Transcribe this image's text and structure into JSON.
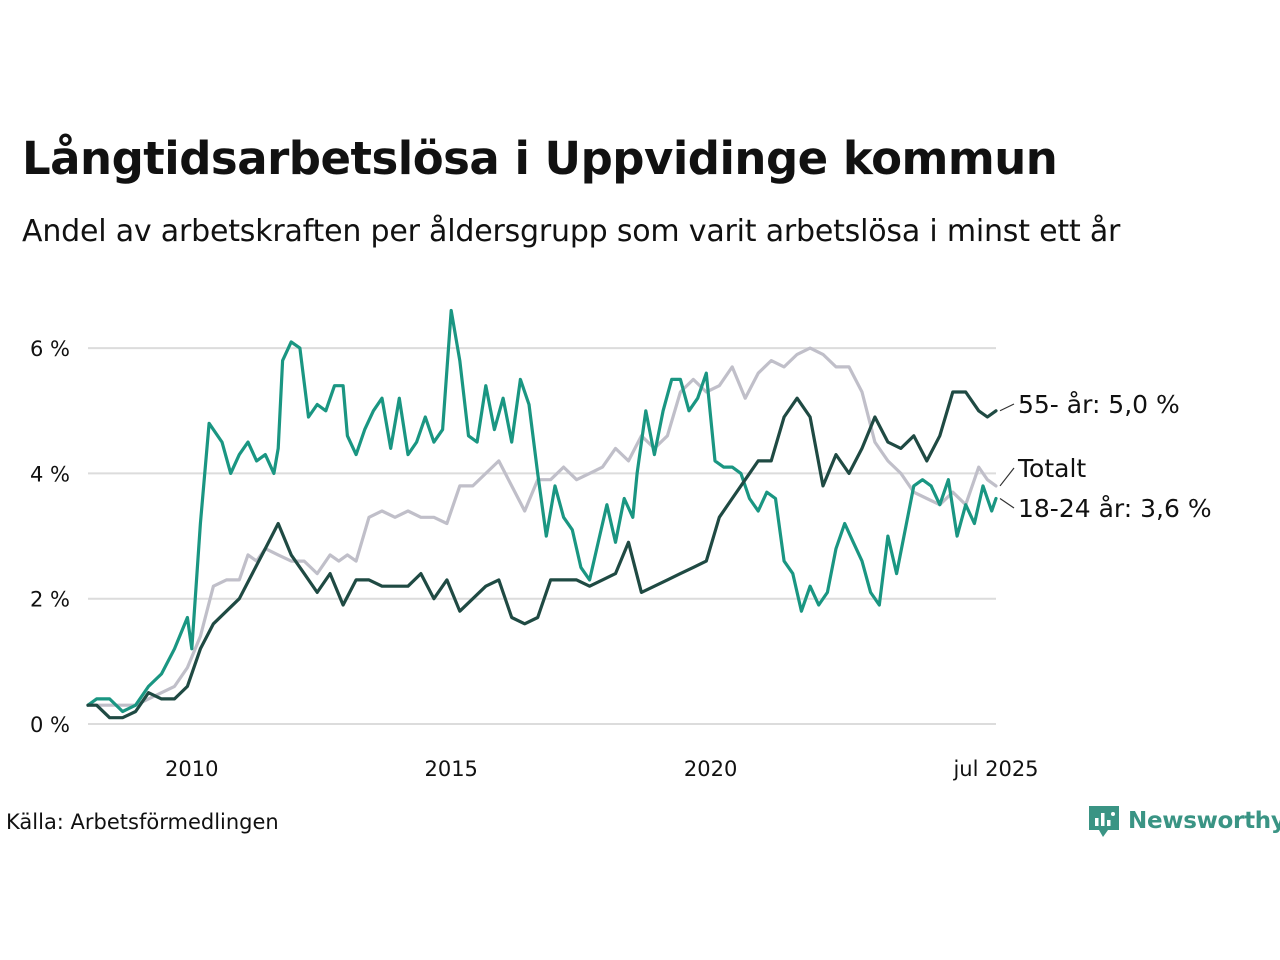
{
  "title": "Långtidsarbetslösa i Uppvidinge kommun",
  "subtitle": "Andel av arbetskraften per åldersgrupp som varit arbetslösa i minst ett år",
  "source": "Källa: Arbetsförmedlingen",
  "brand": {
    "name": "Newsworthy",
    "icon": "newsworthy-logo-icon",
    "color": "#3a9484"
  },
  "colors": {
    "total": "#c0bfc9",
    "young": "#1a9682",
    "old": "#1f4a43",
    "grid": "#dcdcdc"
  },
  "chart_data": {
    "type": "line",
    "title": "Långtidsarbetslösa i Uppvidinge kommun",
    "subtitle": "Andel av arbetskraften per åldersgrupp som varit arbetslösa i minst ett år",
    "x_range": [
      "2008-01",
      "2025-07"
    ],
    "ylim": [
      0,
      6.8
    ],
    "y_ticks": [
      0,
      2,
      4,
      6
    ],
    "y_tick_labels": [
      "0 %",
      "2 %",
      "4 %",
      "6 %"
    ],
    "x_ticks": [
      "2010-01",
      "2015-01",
      "2020-01",
      "2025-07"
    ],
    "x_tick_labels": [
      "2010",
      "2015",
      "2020",
      "jul 2025"
    ],
    "grid": true,
    "series": [
      {
        "key": "total",
        "label": "Totalt",
        "points": [
          [
            "2008-01",
            0.3
          ],
          [
            "2008-06",
            0.3
          ],
          [
            "2008-12",
            0.3
          ],
          [
            "2009-03",
            0.4
          ],
          [
            "2009-06",
            0.5
          ],
          [
            "2009-09",
            0.6
          ],
          [
            "2009-12",
            0.9
          ],
          [
            "2010-03",
            1.4
          ],
          [
            "2010-06",
            2.2
          ],
          [
            "2010-09",
            2.3
          ],
          [
            "2010-12",
            2.3
          ],
          [
            "2011-02",
            2.7
          ],
          [
            "2011-04",
            2.6
          ],
          [
            "2011-06",
            2.8
          ],
          [
            "2011-09",
            2.7
          ],
          [
            "2011-12",
            2.6
          ],
          [
            "2012-03",
            2.6
          ],
          [
            "2012-06",
            2.4
          ],
          [
            "2012-09",
            2.7
          ],
          [
            "2012-11",
            2.6
          ],
          [
            "2013-01",
            2.7
          ],
          [
            "2013-03",
            2.6
          ],
          [
            "2013-06",
            3.3
          ],
          [
            "2013-09",
            3.4
          ],
          [
            "2013-12",
            3.3
          ],
          [
            "2014-03",
            3.4
          ],
          [
            "2014-06",
            3.3
          ],
          [
            "2014-09",
            3.3
          ],
          [
            "2014-12",
            3.2
          ],
          [
            "2015-03",
            3.8
          ],
          [
            "2015-06",
            3.8
          ],
          [
            "2015-09",
            4.0
          ],
          [
            "2015-12",
            4.2
          ],
          [
            "2016-03",
            3.8
          ],
          [
            "2016-06",
            3.4
          ],
          [
            "2016-09",
            3.9
          ],
          [
            "2016-12",
            3.9
          ],
          [
            "2017-03",
            4.1
          ],
          [
            "2017-06",
            3.9
          ],
          [
            "2017-09",
            4.0
          ],
          [
            "2017-12",
            4.1
          ],
          [
            "2018-03",
            4.4
          ],
          [
            "2018-06",
            4.2
          ],
          [
            "2018-09",
            4.6
          ],
          [
            "2018-12",
            4.4
          ],
          [
            "2019-03",
            4.6
          ],
          [
            "2019-06",
            5.3
          ],
          [
            "2019-09",
            5.5
          ],
          [
            "2019-12",
            5.3
          ],
          [
            "2020-03",
            5.4
          ],
          [
            "2020-06",
            5.7
          ],
          [
            "2020-09",
            5.2
          ],
          [
            "2020-12",
            5.6
          ],
          [
            "2021-03",
            5.8
          ],
          [
            "2021-06",
            5.7
          ],
          [
            "2021-09",
            5.9
          ],
          [
            "2021-12",
            6.0
          ],
          [
            "2022-03",
            5.9
          ],
          [
            "2022-06",
            5.7
          ],
          [
            "2022-09",
            5.7
          ],
          [
            "2022-12",
            5.3
          ],
          [
            "2023-03",
            4.5
          ],
          [
            "2023-06",
            4.2
          ],
          [
            "2023-09",
            4.0
          ],
          [
            "2023-12",
            3.7
          ],
          [
            "2024-03",
            3.6
          ],
          [
            "2024-06",
            3.5
          ],
          [
            "2024-09",
            3.7
          ],
          [
            "2024-12",
            3.5
          ],
          [
            "2025-03",
            4.1
          ],
          [
            "2025-04",
            4.0
          ],
          [
            "2025-05",
            3.9
          ],
          [
            "2025-07",
            3.8
          ]
        ]
      },
      {
        "key": "young",
        "label": "18-24 år: 3,6 %",
        "points": [
          [
            "2008-01",
            0.3
          ],
          [
            "2008-03",
            0.4
          ],
          [
            "2008-06",
            0.4
          ],
          [
            "2008-09",
            0.2
          ],
          [
            "2008-12",
            0.3
          ],
          [
            "2009-03",
            0.6
          ],
          [
            "2009-06",
            0.8
          ],
          [
            "2009-09",
            1.2
          ],
          [
            "2009-12",
            1.7
          ],
          [
            "2010-01",
            1.2
          ],
          [
            "2010-03",
            3.2
          ],
          [
            "2010-05",
            4.8
          ],
          [
            "2010-08",
            4.5
          ],
          [
            "2010-10",
            4.0
          ],
          [
            "2010-12",
            4.3
          ],
          [
            "2011-02",
            4.5
          ],
          [
            "2011-04",
            4.2
          ],
          [
            "2011-06",
            4.3
          ],
          [
            "2011-08",
            4.0
          ],
          [
            "2011-09",
            4.4
          ],
          [
            "2011-10",
            5.8
          ],
          [
            "2011-12",
            6.1
          ],
          [
            "2012-02",
            6.0
          ],
          [
            "2012-04",
            4.9
          ],
          [
            "2012-06",
            5.1
          ],
          [
            "2012-08",
            5.0
          ],
          [
            "2012-10",
            5.4
          ],
          [
            "2012-12",
            5.4
          ],
          [
            "2013-01",
            4.6
          ],
          [
            "2013-03",
            4.3
          ],
          [
            "2013-05",
            4.7
          ],
          [
            "2013-07",
            5.0
          ],
          [
            "2013-09",
            5.2
          ],
          [
            "2013-11",
            4.4
          ],
          [
            "2014-01",
            5.2
          ],
          [
            "2014-03",
            4.3
          ],
          [
            "2014-05",
            4.5
          ],
          [
            "2014-07",
            4.9
          ],
          [
            "2014-09",
            4.5
          ],
          [
            "2014-11",
            4.7
          ],
          [
            "2015-01",
            6.6
          ],
          [
            "2015-03",
            5.8
          ],
          [
            "2015-05",
            4.6
          ],
          [
            "2015-07",
            4.5
          ],
          [
            "2015-09",
            5.4
          ],
          [
            "2015-11",
            4.7
          ],
          [
            "2016-01",
            5.2
          ],
          [
            "2016-03",
            4.5
          ],
          [
            "2016-05",
            5.5
          ],
          [
            "2016-07",
            5.1
          ],
          [
            "2016-09",
            4.0
          ],
          [
            "2016-11",
            3.0
          ],
          [
            "2017-01",
            3.8
          ],
          [
            "2017-03",
            3.3
          ],
          [
            "2017-05",
            3.1
          ],
          [
            "2017-07",
            2.5
          ],
          [
            "2017-09",
            2.3
          ],
          [
            "2017-11",
            2.9
          ],
          [
            "2018-01",
            3.5
          ],
          [
            "2018-03",
            2.9
          ],
          [
            "2018-05",
            3.6
          ],
          [
            "2018-07",
            3.3
          ],
          [
            "2018-08",
            4.0
          ],
          [
            "2018-10",
            5.0
          ],
          [
            "2018-12",
            4.3
          ],
          [
            "2019-02",
            5.0
          ],
          [
            "2019-04",
            5.5
          ],
          [
            "2019-06",
            5.5
          ],
          [
            "2019-08",
            5.0
          ],
          [
            "2019-10",
            5.2
          ],
          [
            "2019-12",
            5.6
          ],
          [
            "2020-02",
            4.2
          ],
          [
            "2020-04",
            4.1
          ],
          [
            "2020-06",
            4.1
          ],
          [
            "2020-08",
            4.0
          ],
          [
            "2020-10",
            3.6
          ],
          [
            "2020-12",
            3.4
          ],
          [
            "2021-02",
            3.7
          ],
          [
            "2021-04",
            3.6
          ],
          [
            "2021-06",
            2.6
          ],
          [
            "2021-08",
            2.4
          ],
          [
            "2021-10",
            1.8
          ],
          [
            "2021-12",
            2.2
          ],
          [
            "2022-02",
            1.9
          ],
          [
            "2022-04",
            2.1
          ],
          [
            "2022-06",
            2.8
          ],
          [
            "2022-08",
            3.2
          ],
          [
            "2022-10",
            2.9
          ],
          [
            "2022-12",
            2.6
          ],
          [
            "2023-02",
            2.1
          ],
          [
            "2023-04",
            1.9
          ],
          [
            "2023-06",
            3.0
          ],
          [
            "2023-08",
            2.4
          ],
          [
            "2023-10",
            3.1
          ],
          [
            "2023-12",
            3.8
          ],
          [
            "2024-02",
            3.9
          ],
          [
            "2024-04",
            3.8
          ],
          [
            "2024-06",
            3.5
          ],
          [
            "2024-08",
            3.9
          ],
          [
            "2024-10",
            3.0
          ],
          [
            "2024-12",
            3.5
          ],
          [
            "2025-02",
            3.2
          ],
          [
            "2025-04",
            3.8
          ],
          [
            "2025-06",
            3.4
          ],
          [
            "2025-07",
            3.6
          ]
        ]
      },
      {
        "key": "old",
        "label": "55- år: 5,0 %",
        "points": [
          [
            "2008-01",
            0.3
          ],
          [
            "2008-03",
            0.3
          ],
          [
            "2008-06",
            0.1
          ],
          [
            "2008-09",
            0.1
          ],
          [
            "2008-12",
            0.2
          ],
          [
            "2009-03",
            0.5
          ],
          [
            "2009-06",
            0.4
          ],
          [
            "2009-09",
            0.4
          ],
          [
            "2009-12",
            0.6
          ],
          [
            "2010-03",
            1.2
          ],
          [
            "2010-06",
            1.6
          ],
          [
            "2010-09",
            1.8
          ],
          [
            "2010-12",
            2.0
          ],
          [
            "2011-03",
            2.4
          ],
          [
            "2011-06",
            2.8
          ],
          [
            "2011-09",
            3.2
          ],
          [
            "2011-12",
            2.7
          ],
          [
            "2012-03",
            2.4
          ],
          [
            "2012-06",
            2.1
          ],
          [
            "2012-09",
            2.4
          ],
          [
            "2012-12",
            1.9
          ],
          [
            "2013-03",
            2.3
          ],
          [
            "2013-06",
            2.3
          ],
          [
            "2013-09",
            2.2
          ],
          [
            "2013-12",
            2.2
          ],
          [
            "2014-03",
            2.2
          ],
          [
            "2014-06",
            2.4
          ],
          [
            "2014-09",
            2.0
          ],
          [
            "2014-12",
            2.3
          ],
          [
            "2015-03",
            1.8
          ],
          [
            "2015-06",
            2.0
          ],
          [
            "2015-09",
            2.2
          ],
          [
            "2015-12",
            2.3
          ],
          [
            "2016-03",
            1.7
          ],
          [
            "2016-06",
            1.6
          ],
          [
            "2016-09",
            1.7
          ],
          [
            "2016-12",
            2.3
          ],
          [
            "2017-03",
            2.3
          ],
          [
            "2017-06",
            2.3
          ],
          [
            "2017-09",
            2.2
          ],
          [
            "2017-12",
            2.3
          ],
          [
            "2018-03",
            2.4
          ],
          [
            "2018-06",
            2.9
          ],
          [
            "2018-09",
            2.1
          ],
          [
            "2018-12",
            2.2
          ],
          [
            "2019-03",
            2.3
          ],
          [
            "2019-06",
            2.4
          ],
          [
            "2019-09",
            2.5
          ],
          [
            "2019-12",
            2.6
          ],
          [
            "2020-03",
            3.3
          ],
          [
            "2020-06",
            3.6
          ],
          [
            "2020-09",
            3.9
          ],
          [
            "2020-12",
            4.2
          ],
          [
            "2021-03",
            4.2
          ],
          [
            "2021-06",
            4.9
          ],
          [
            "2021-09",
            5.2
          ],
          [
            "2021-12",
            4.9
          ],
          [
            "2022-03",
            3.8
          ],
          [
            "2022-06",
            4.3
          ],
          [
            "2022-09",
            4.0
          ],
          [
            "2022-12",
            4.4
          ],
          [
            "2023-03",
            4.9
          ],
          [
            "2023-06",
            4.5
          ],
          [
            "2023-09",
            4.4
          ],
          [
            "2023-12",
            4.6
          ],
          [
            "2024-03",
            4.2
          ],
          [
            "2024-06",
            4.6
          ],
          [
            "2024-09",
            5.3
          ],
          [
            "2024-12",
            5.3
          ],
          [
            "2025-03",
            5.0
          ],
          [
            "2025-05",
            4.9
          ],
          [
            "2025-07",
            5.0
          ]
        ]
      }
    ]
  }
}
